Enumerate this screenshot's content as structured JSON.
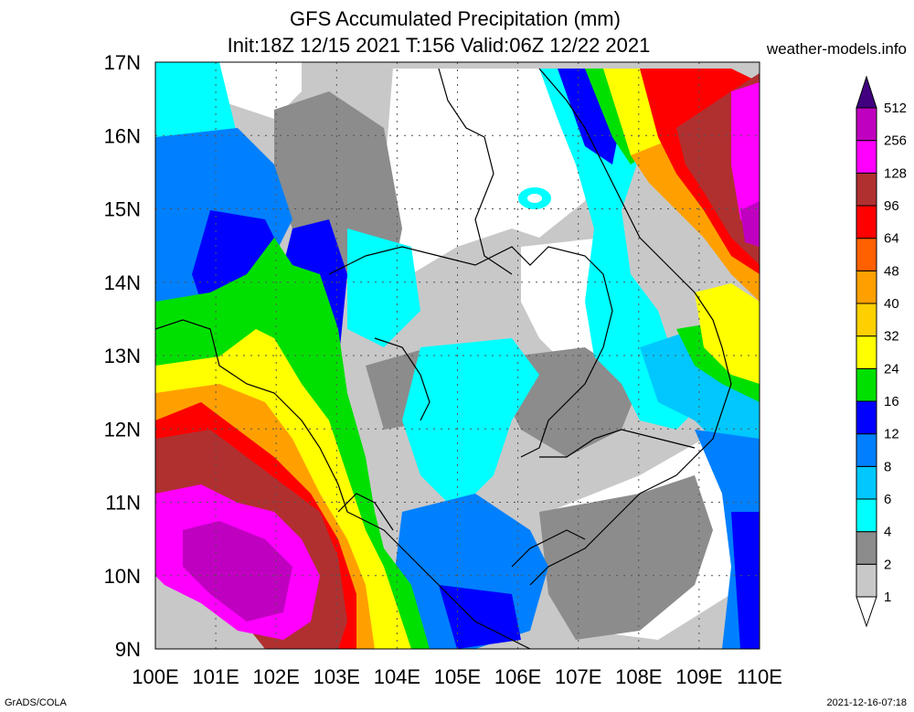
{
  "header": {
    "title": "GFS Accumulated Precipitation (mm)",
    "subtitle": "Init:18Z 12/15 2021 T:156 Valid:06Z 12/22 2021",
    "source": "weather-models.info"
  },
  "footer": {
    "software": "GrADS/COLA",
    "timestamp": "2021-12-16-07:18"
  },
  "map": {
    "lon_range": [
      100,
      110
    ],
    "lat_range": [
      9,
      17
    ],
    "lon_ticks": [
      "100E",
      "101E",
      "102E",
      "103E",
      "104E",
      "105E",
      "106E",
      "107E",
      "108E",
      "109E",
      "110E"
    ],
    "lat_ticks": [
      "9N",
      "10N",
      "11N",
      "12N",
      "13N",
      "14N",
      "15N",
      "16N",
      "17N"
    ],
    "grid": true
  },
  "colorbar": {
    "levels": [
      "1",
      "2",
      "4",
      "6",
      "8",
      "12",
      "16",
      "24",
      "32",
      "40",
      "48",
      "64",
      "96",
      "128",
      "256",
      "512"
    ],
    "colors": [
      "#c8c8c8",
      "#8c8c8c",
      "#00ffff",
      "#00c8ff",
      "#0080ff",
      "#0000ff",
      "#00e000",
      "#ffff00",
      "#ffd000",
      "#ffa000",
      "#ff6000",
      "#ff0000",
      "#b03030",
      "#ff00ff",
      "#c000c0",
      "#8000a0",
      "#400080"
    ]
  }
}
